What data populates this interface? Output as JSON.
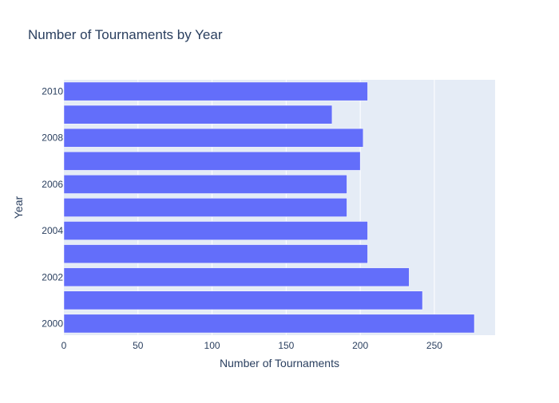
{
  "chart_data": {
    "type": "bar",
    "orientation": "horizontal",
    "title": "Number of Tournaments by Year",
    "xlabel": "Number of Tournaments",
    "ylabel": "Year",
    "categories": [
      "2000",
      "2001",
      "2002",
      "2003",
      "2004",
      "2005",
      "2006",
      "2007",
      "2008",
      "2009",
      "2010"
    ],
    "values": [
      277,
      242,
      233,
      205,
      205,
      191,
      191,
      200,
      202,
      181,
      205
    ],
    "xlim": [
      0,
      291
    ],
    "x_ticks": [
      0,
      50,
      100,
      150,
      200,
      250
    ],
    "y_tick_labels": [
      "2000",
      "2002",
      "2004",
      "2006",
      "2008",
      "2010"
    ],
    "grid": true,
    "colors": {
      "bar": "#636efa",
      "plot_bg": "#e5ecf6",
      "grid": "#ffffff",
      "text": "#2a3f5f"
    }
  }
}
